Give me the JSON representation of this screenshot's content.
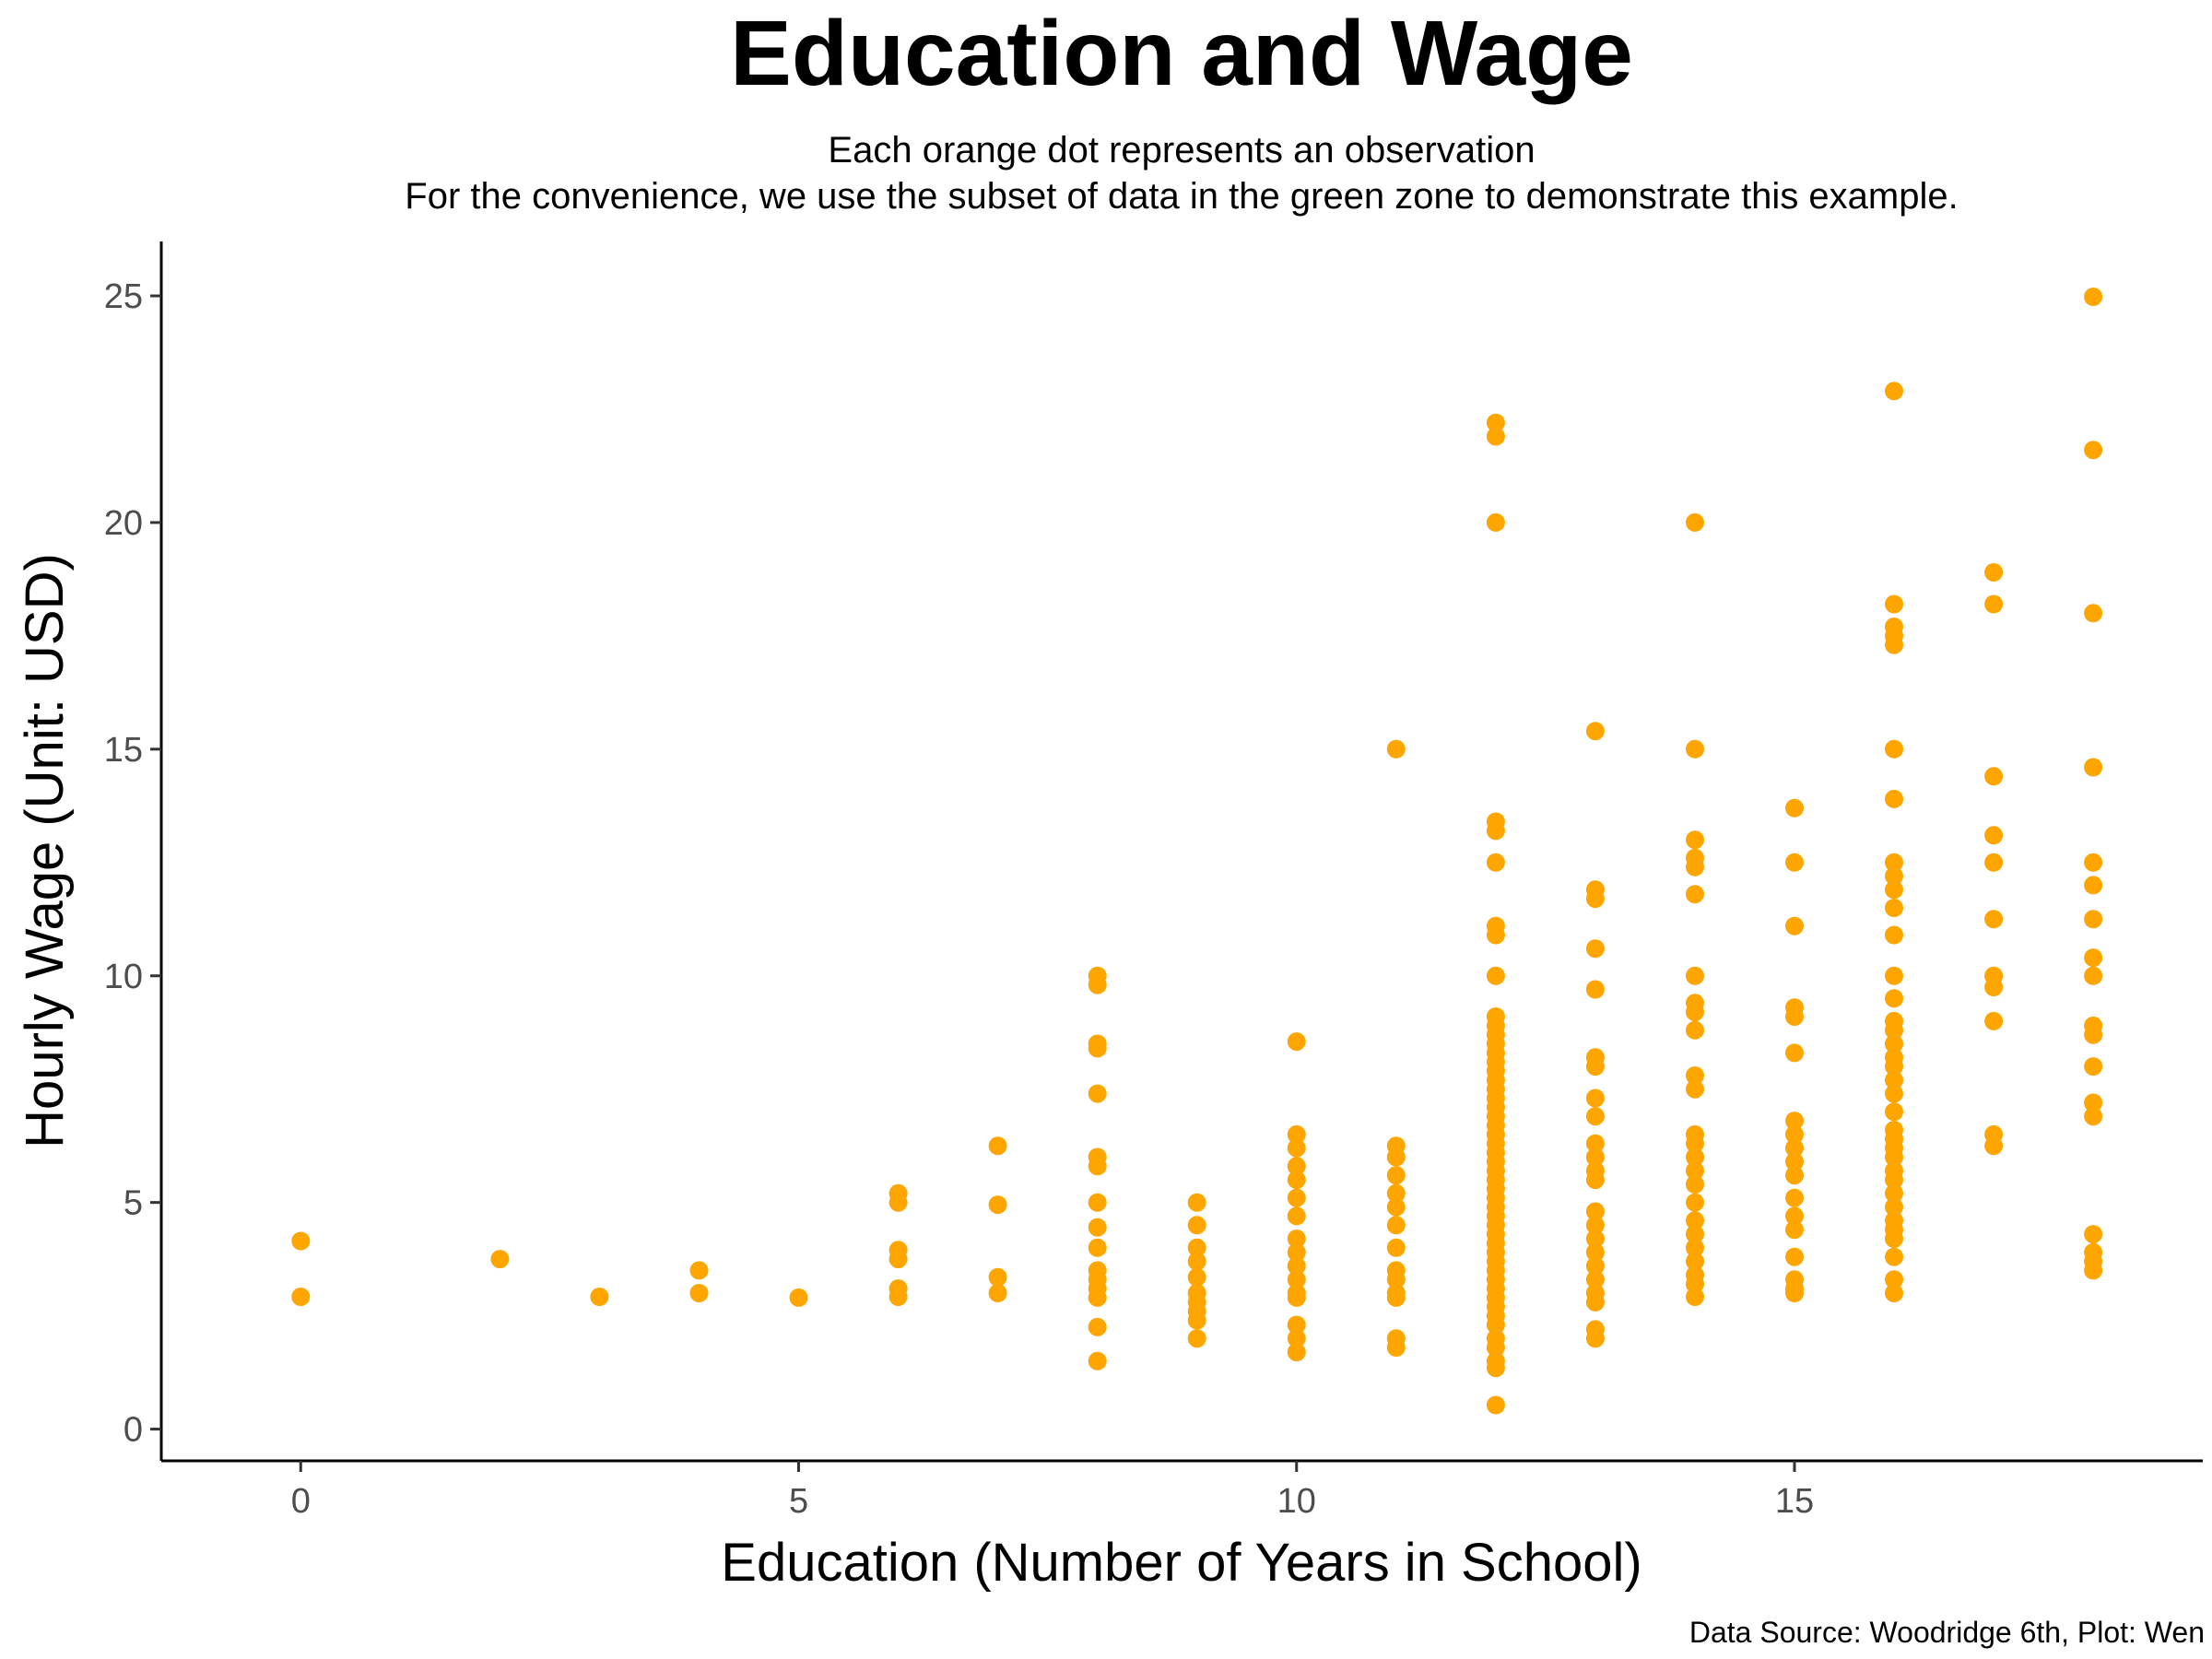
{
  "chart_data": {
    "type": "scatter",
    "title": "Education and Wage",
    "subtitle_line1": "Each orange dot represents an observation",
    "subtitle_line2": "For the convenience, we use the subset of data in the green zone to demonstrate this example.",
    "xlabel": "Education (Number of Years in School)",
    "ylabel": "Hourly Wage (Unit: USD)",
    "caption": "Data Source: Woodridge 6th, Plot: Wen",
    "xlim": [
      -1.4,
      19.1
    ],
    "ylim": [
      -0.7,
      26.2
    ],
    "x_ticks": [
      0,
      5,
      10,
      15
    ],
    "y_ticks": [
      0,
      5,
      10,
      15,
      20,
      25
    ],
    "grid": false,
    "point_color": "#FFA500",
    "series": [
      {
        "points": [
          [
            0,
            4.15
          ],
          [
            0,
            2.92
          ],
          [
            2,
            3.75
          ],
          [
            3,
            2.92
          ],
          [
            4,
            3.5
          ],
          [
            4,
            3.0
          ],
          [
            5,
            2.9
          ],
          [
            6,
            5.2
          ],
          [
            6,
            5.0
          ],
          [
            6,
            3.95
          ],
          [
            6,
            3.75
          ],
          [
            6,
            3.1
          ],
          [
            6,
            2.92
          ],
          [
            7,
            6.25
          ],
          [
            7,
            4.95
          ],
          [
            7,
            3.35
          ],
          [
            7,
            3.0
          ],
          [
            8,
            10.0
          ],
          [
            8,
            9.8
          ],
          [
            8,
            8.5
          ],
          [
            8,
            8.4
          ],
          [
            8,
            7.4
          ],
          [
            8,
            6.0
          ],
          [
            8,
            5.8
          ],
          [
            8,
            5.0
          ],
          [
            8,
            4.45
          ],
          [
            8,
            4.0
          ],
          [
            8,
            3.5
          ],
          [
            8,
            3.3
          ],
          [
            8,
            3.1
          ],
          [
            8,
            2.9
          ],
          [
            8,
            2.25
          ],
          [
            8,
            1.5
          ],
          [
            9,
            5.0
          ],
          [
            9,
            4.5
          ],
          [
            9,
            4.0
          ],
          [
            9,
            3.7
          ],
          [
            9,
            3.35
          ],
          [
            9,
            3.0
          ],
          [
            9,
            2.8
          ],
          [
            9,
            2.6
          ],
          [
            9,
            2.4
          ],
          [
            9,
            2.0
          ],
          [
            10,
            8.55
          ],
          [
            10,
            6.5
          ],
          [
            10,
            6.2
          ],
          [
            10,
            5.8
          ],
          [
            10,
            5.5
          ],
          [
            10,
            5.1
          ],
          [
            10,
            4.7
          ],
          [
            10,
            4.2
          ],
          [
            10,
            3.9
          ],
          [
            10,
            3.6
          ],
          [
            10,
            3.3
          ],
          [
            10,
            3.0
          ],
          [
            10,
            2.9
          ],
          [
            10,
            2.3
          ],
          [
            10,
            2.0
          ],
          [
            10,
            1.7
          ],
          [
            11,
            15.0
          ],
          [
            11,
            6.25
          ],
          [
            11,
            6.0
          ],
          [
            11,
            5.6
          ],
          [
            11,
            5.2
          ],
          [
            11,
            4.9
          ],
          [
            11,
            4.5
          ],
          [
            11,
            4.0
          ],
          [
            11,
            3.5
          ],
          [
            11,
            3.3
          ],
          [
            11,
            3.0
          ],
          [
            11,
            2.9
          ],
          [
            11,
            2.0
          ],
          [
            11,
            1.8
          ],
          [
            12,
            22.2
          ],
          [
            12,
            21.9
          ],
          [
            12,
            20.0
          ],
          [
            12,
            13.4
          ],
          [
            12,
            13.2
          ],
          [
            12,
            12.5
          ],
          [
            12,
            11.1
          ],
          [
            12,
            10.9
          ],
          [
            12,
            10.0
          ],
          [
            12,
            9.1
          ],
          [
            12,
            8.9
          ],
          [
            12,
            8.7
          ],
          [
            12,
            8.5
          ],
          [
            12,
            8.3
          ],
          [
            12,
            8.1
          ],
          [
            12,
            7.9
          ],
          [
            12,
            7.7
          ],
          [
            12,
            7.5
          ],
          [
            12,
            7.3
          ],
          [
            12,
            7.1
          ],
          [
            12,
            6.9
          ],
          [
            12,
            6.7
          ],
          [
            12,
            6.5
          ],
          [
            12,
            6.3
          ],
          [
            12,
            6.1
          ],
          [
            12,
            5.9
          ],
          [
            12,
            5.7
          ],
          [
            12,
            5.5
          ],
          [
            12,
            5.3
          ],
          [
            12,
            5.1
          ],
          [
            12,
            4.9
          ],
          [
            12,
            4.7
          ],
          [
            12,
            4.5
          ],
          [
            12,
            4.3
          ],
          [
            12,
            4.1
          ],
          [
            12,
            3.9
          ],
          [
            12,
            3.7
          ],
          [
            12,
            3.5
          ],
          [
            12,
            3.3
          ],
          [
            12,
            3.1
          ],
          [
            12,
            2.9
          ],
          [
            12,
            2.7
          ],
          [
            12,
            2.5
          ],
          [
            12,
            2.3
          ],
          [
            12,
            2.0
          ],
          [
            12,
            1.8
          ],
          [
            12,
            1.5
          ],
          [
            12,
            1.35
          ],
          [
            12,
            0.53
          ],
          [
            13,
            15.4
          ],
          [
            13,
            11.9
          ],
          [
            13,
            11.7
          ],
          [
            13,
            10.6
          ],
          [
            13,
            9.7
          ],
          [
            13,
            8.2
          ],
          [
            13,
            8.0
          ],
          [
            13,
            7.3
          ],
          [
            13,
            6.9
          ],
          [
            13,
            6.3
          ],
          [
            13,
            6.0
          ],
          [
            13,
            5.7
          ],
          [
            13,
            5.5
          ],
          [
            13,
            4.8
          ],
          [
            13,
            4.5
          ],
          [
            13,
            4.2
          ],
          [
            13,
            3.9
          ],
          [
            13,
            3.6
          ],
          [
            13,
            3.3
          ],
          [
            13,
            3.0
          ],
          [
            13,
            2.8
          ],
          [
            13,
            2.2
          ],
          [
            13,
            2.0
          ],
          [
            14,
            20.0
          ],
          [
            14,
            15.0
          ],
          [
            14,
            13.0
          ],
          [
            14,
            12.6
          ],
          [
            14,
            12.4
          ],
          [
            14,
            11.8
          ],
          [
            14,
            10.0
          ],
          [
            14,
            9.4
          ],
          [
            14,
            9.2
          ],
          [
            14,
            8.8
          ],
          [
            14,
            7.8
          ],
          [
            14,
            7.5
          ],
          [
            14,
            6.5
          ],
          [
            14,
            6.3
          ],
          [
            14,
            6.0
          ],
          [
            14,
            5.7
          ],
          [
            14,
            5.4
          ],
          [
            14,
            5.0
          ],
          [
            14,
            4.6
          ],
          [
            14,
            4.3
          ],
          [
            14,
            4.0
          ],
          [
            14,
            3.7
          ],
          [
            14,
            3.4
          ],
          [
            14,
            3.2
          ],
          [
            14,
            2.92
          ],
          [
            15,
            13.7
          ],
          [
            15,
            12.5
          ],
          [
            15,
            11.1
          ],
          [
            15,
            9.3
          ],
          [
            15,
            9.1
          ],
          [
            15,
            8.3
          ],
          [
            15,
            6.8
          ],
          [
            15,
            6.5
          ],
          [
            15,
            6.2
          ],
          [
            15,
            5.9
          ],
          [
            15,
            5.6
          ],
          [
            15,
            5.1
          ],
          [
            15,
            4.7
          ],
          [
            15,
            4.4
          ],
          [
            15,
            3.8
          ],
          [
            15,
            3.3
          ],
          [
            15,
            3.1
          ],
          [
            15,
            3.0
          ],
          [
            16,
            22.9
          ],
          [
            16,
            18.2
          ],
          [
            16,
            17.7
          ],
          [
            16,
            17.5
          ],
          [
            16,
            17.3
          ],
          [
            16,
            15.0
          ],
          [
            16,
            13.9
          ],
          [
            16,
            12.5
          ],
          [
            16,
            12.2
          ],
          [
            16,
            11.9
          ],
          [
            16,
            11.5
          ],
          [
            16,
            10.9
          ],
          [
            16,
            10.0
          ],
          [
            16,
            9.5
          ],
          [
            16,
            9.0
          ],
          [
            16,
            8.8
          ],
          [
            16,
            8.5
          ],
          [
            16,
            8.2
          ],
          [
            16,
            8.0
          ],
          [
            16,
            7.7
          ],
          [
            16,
            7.4
          ],
          [
            16,
            7.0
          ],
          [
            16,
            6.6
          ],
          [
            16,
            6.4
          ],
          [
            16,
            6.2
          ],
          [
            16,
            6.0
          ],
          [
            16,
            5.7
          ],
          [
            16,
            5.5
          ],
          [
            16,
            5.2
          ],
          [
            16,
            4.9
          ],
          [
            16,
            4.6
          ],
          [
            16,
            4.4
          ],
          [
            16,
            4.2
          ],
          [
            16,
            3.8
          ],
          [
            16,
            3.3
          ],
          [
            16,
            3.0
          ],
          [
            17,
            18.9
          ],
          [
            17,
            18.2
          ],
          [
            17,
            14.4
          ],
          [
            17,
            13.1
          ],
          [
            17,
            12.5
          ],
          [
            17,
            11.25
          ],
          [
            17,
            10.0
          ],
          [
            17,
            9.75
          ],
          [
            17,
            9.0
          ],
          [
            17,
            6.5
          ],
          [
            17,
            6.25
          ],
          [
            18,
            24.98
          ],
          [
            18,
            21.6
          ],
          [
            18,
            18.0
          ],
          [
            18,
            14.6
          ],
          [
            18,
            12.5
          ],
          [
            18,
            12.0
          ],
          [
            18,
            11.25
          ],
          [
            18,
            10.4
          ],
          [
            18,
            10.0
          ],
          [
            18,
            8.9
          ],
          [
            18,
            8.7
          ],
          [
            18,
            8.0
          ],
          [
            18,
            7.2
          ],
          [
            18,
            6.9
          ],
          [
            18,
            4.3
          ],
          [
            18,
            3.9
          ],
          [
            18,
            3.7
          ],
          [
            18,
            3.5
          ]
        ]
      }
    ]
  }
}
